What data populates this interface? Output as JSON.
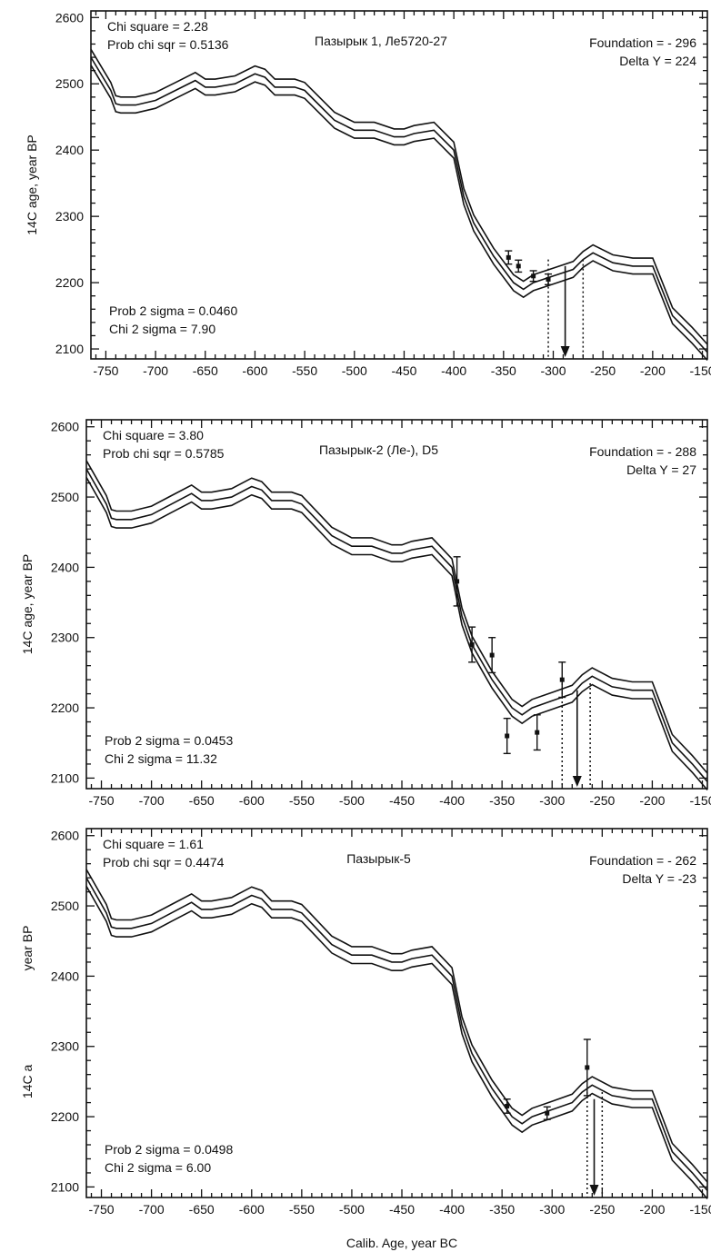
{
  "figure": {
    "xlabel_bottom": "Calib. Age, year BC"
  },
  "chart_data": [
    {
      "type": "line",
      "title": "Пазырык 1, Ле5720-27",
      "ylabel": "14C age, year BP",
      "xlabel": "",
      "xlim": [
        -765,
        -145
      ],
      "ylim": [
        2085,
        2610
      ],
      "x_ticks": [
        -750,
        -700,
        -650,
        -600,
        -550,
        -500,
        -450,
        -400,
        -350,
        -300,
        -250,
        -200,
        -150
      ],
      "y_ticks": [
        2100,
        2200,
        2300,
        2400,
        2500,
        2600
      ],
      "stats_left_top": [
        "Chi square = 2.28",
        "Prob chi sqr = 0.5136"
      ],
      "stats_right_top": [
        "Foundation = - 296",
        "Delta Y = 224"
      ],
      "stats_left_bottom": [
        "Prob 2 sigma = 0.0460",
        "Chi 2 sigma = 7.90"
      ],
      "calibration_curve": {
        "x": [
          -765,
          -745,
          -740,
          -735,
          -720,
          -700,
          -680,
          -660,
          -650,
          -640,
          -620,
          -600,
          -590,
          -580,
          -560,
          -550,
          -540,
          -520,
          -500,
          -480,
          -460,
          -450,
          -440,
          -420,
          -400,
          -390,
          -380,
          -360,
          -340,
          -330,
          -320,
          -300,
          -280,
          -270,
          -260,
          -240,
          -220,
          -200,
          -180,
          -160,
          -145
        ],
        "y": [
          2540,
          2490,
          2470,
          2468,
          2468,
          2475,
          2490,
          2505,
          2495,
          2495,
          2500,
          2515,
          2510,
          2495,
          2495,
          2490,
          2475,
          2445,
          2430,
          2430,
          2420,
          2420,
          2425,
          2430,
          2400,
          2330,
          2290,
          2240,
          2200,
          2190,
          2200,
          2210,
          2220,
          2235,
          2245,
          2230,
          2225,
          2225,
          2150,
          2120,
          2095
        ],
        "band_half_width": 12
      },
      "points": [
        {
          "x": -345,
          "y": 2238,
          "err": 10
        },
        {
          "x": -335,
          "y": 2225,
          "err": 9
        },
        {
          "x": -320,
          "y": 2210,
          "err": 8
        },
        {
          "x": -305,
          "y": 2205,
          "err": 8
        }
      ],
      "markers": {
        "dotted_left": -305,
        "dotted_right": -270,
        "arrow": -288
      }
    },
    {
      "type": "line",
      "title": "Пазырык-2 (Ле-), D5",
      "ylabel": "14C age, year BP",
      "xlabel": "",
      "xlim": [
        -765,
        -145
      ],
      "ylim": [
        2085,
        2610
      ],
      "x_ticks": [
        -750,
        -700,
        -650,
        -600,
        -550,
        -500,
        -450,
        -400,
        -350,
        -300,
        -250,
        -200,
        -150
      ],
      "y_ticks": [
        2100,
        2200,
        2300,
        2400,
        2500,
        2600
      ],
      "stats_left_top": [
        "Chi square = 3.80",
        "Prob chi sqr = 0.5785"
      ],
      "stats_right_top": [
        "Foundation = - 288",
        "Delta Y = 27"
      ],
      "stats_left_bottom": [
        "Prob 2 sigma = 0.0453",
        "Chi 2 sigma = 11.32"
      ],
      "calibration_curve": {
        "x": [
          -765,
          -745,
          -740,
          -735,
          -720,
          -700,
          -680,
          -660,
          -650,
          -640,
          -620,
          -600,
          -590,
          -580,
          -560,
          -550,
          -540,
          -520,
          -500,
          -480,
          -460,
          -450,
          -440,
          -420,
          -400,
          -390,
          -380,
          -360,
          -340,
          -330,
          -320,
          -300,
          -280,
          -270,
          -260,
          -240,
          -220,
          -200,
          -180,
          -160,
          -145
        ],
        "y": [
          2540,
          2490,
          2470,
          2468,
          2468,
          2475,
          2490,
          2505,
          2495,
          2495,
          2500,
          2515,
          2510,
          2495,
          2495,
          2490,
          2475,
          2445,
          2430,
          2430,
          2420,
          2420,
          2425,
          2430,
          2400,
          2330,
          2290,
          2240,
          2200,
          2190,
          2200,
          2210,
          2220,
          2235,
          2245,
          2230,
          2225,
          2225,
          2150,
          2120,
          2095
        ],
        "band_half_width": 12
      },
      "points": [
        {
          "x": -395,
          "y": 2380,
          "err": 35
        },
        {
          "x": -380,
          "y": 2290,
          "err": 25
        },
        {
          "x": -360,
          "y": 2275,
          "err": 25
        },
        {
          "x": -345,
          "y": 2160,
          "err": 25
        },
        {
          "x": -315,
          "y": 2165,
          "err": 25
        },
        {
          "x": -290,
          "y": 2240,
          "err": 25
        }
      ],
      "markers": {
        "dotted_left": -290,
        "dotted_right": -262,
        "arrow": -275
      }
    },
    {
      "type": "line",
      "title": "Пазырык-5",
      "ylabel": "14C a",
      "ylabel_extra": "year BP",
      "xlabel": "Calib. Age, year BC",
      "xlim": [
        -765,
        -145
      ],
      "ylim": [
        2085,
        2610
      ],
      "x_ticks": [
        -750,
        -700,
        -650,
        -600,
        -550,
        -500,
        -450,
        -400,
        -350,
        -300,
        -250,
        -200,
        -150
      ],
      "y_ticks": [
        2100,
        2200,
        2300,
        2400,
        2500,
        2600
      ],
      "stats_left_top": [
        "Chi square = 1.61",
        "Prob chi sqr = 0.4474"
      ],
      "stats_right_top": [
        "Foundation = - 262",
        "Delta Y = -23"
      ],
      "stats_left_bottom": [
        "Prob 2 sigma = 0.0498",
        "Chi 2 sigma = 6.00"
      ],
      "calibration_curve": {
        "x": [
          -765,
          -745,
          -740,
          -735,
          -720,
          -700,
          -680,
          -660,
          -650,
          -640,
          -620,
          -600,
          -590,
          -580,
          -560,
          -550,
          -540,
          -520,
          -500,
          -480,
          -460,
          -450,
          -440,
          -420,
          -400,
          -390,
          -380,
          -360,
          -340,
          -330,
          -320,
          -300,
          -280,
          -270,
          -260,
          -240,
          -220,
          -200,
          -180,
          -160,
          -145
        ],
        "y": [
          2540,
          2490,
          2470,
          2468,
          2468,
          2475,
          2490,
          2505,
          2495,
          2495,
          2500,
          2515,
          2510,
          2495,
          2495,
          2490,
          2475,
          2445,
          2430,
          2430,
          2420,
          2420,
          2425,
          2430,
          2400,
          2330,
          2290,
          2240,
          2200,
          2190,
          2200,
          2210,
          2220,
          2235,
          2245,
          2230,
          2225,
          2225,
          2150,
          2120,
          2095
        ],
        "band_half_width": 12
      },
      "points": [
        {
          "x": -345,
          "y": 2215,
          "err": 10
        },
        {
          "x": -305,
          "y": 2205,
          "err": 9
        },
        {
          "x": -265,
          "y": 2270,
          "err": 40
        }
      ],
      "markers": {
        "dotted_left": -265,
        "dotted_right": -250,
        "arrow": -258
      }
    }
  ]
}
